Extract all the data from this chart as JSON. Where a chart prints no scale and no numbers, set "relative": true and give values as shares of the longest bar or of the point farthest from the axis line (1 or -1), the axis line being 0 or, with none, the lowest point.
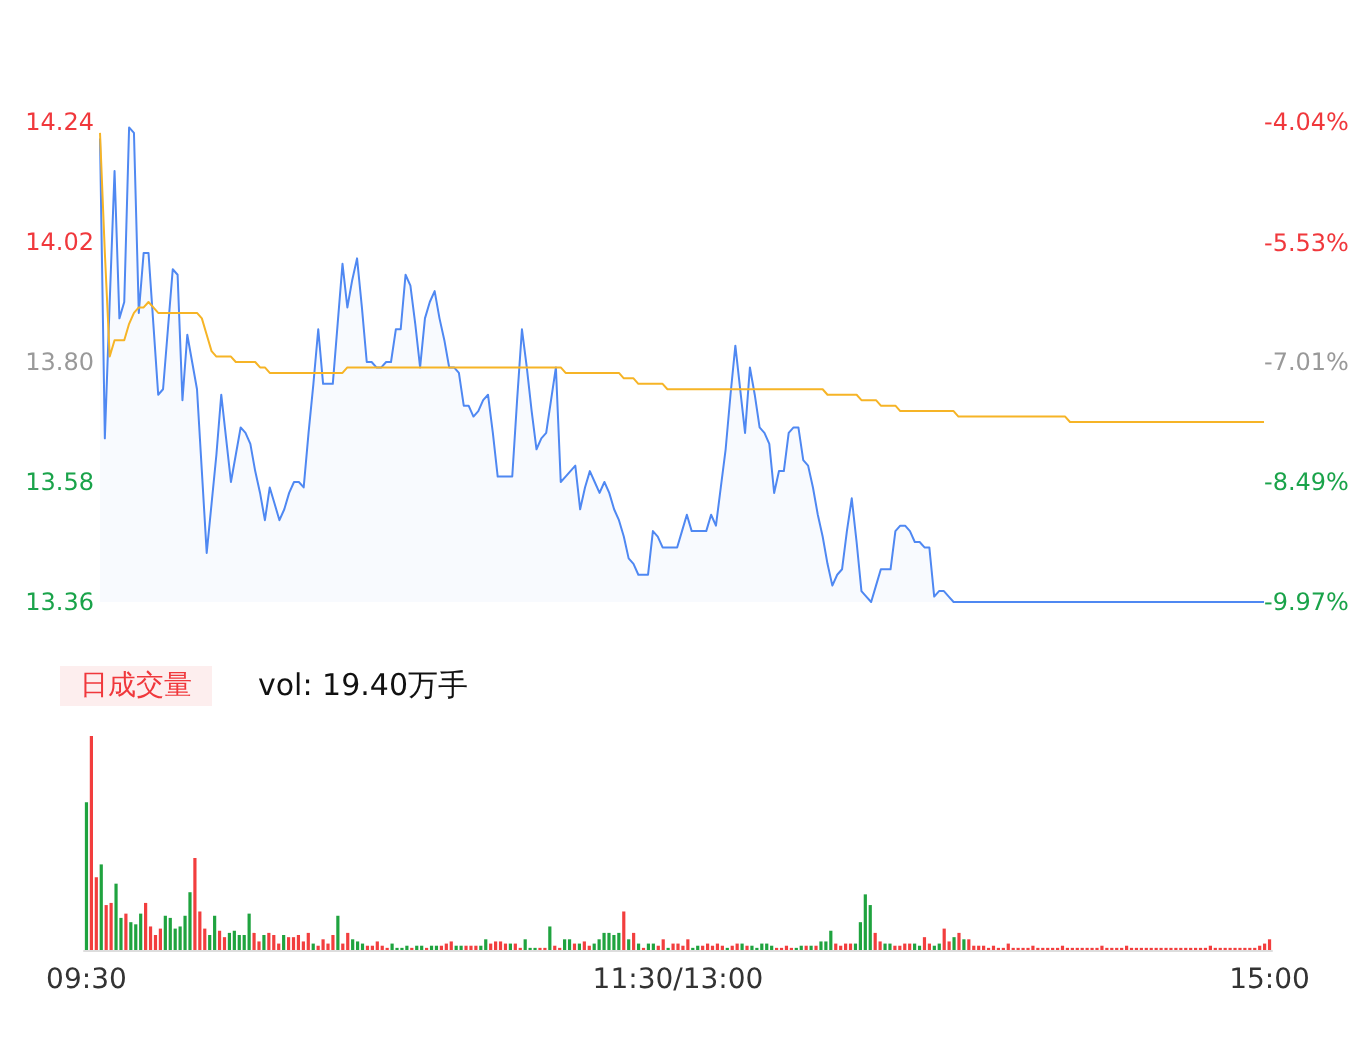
{
  "chart_data": [
    {
      "type": "line",
      "ylim": [
        13.36,
        14.24
      ],
      "yticks": [
        13.36,
        13.58,
        {
          "value": 13.8,
          "label": "13.80"
        },
        14.02,
        14.24
      ],
      "y2lim": [
        -9.97,
        -4.04
      ],
      "y2ticks": [
        {
          "value": -9.97,
          "label": "-9.97%"
        },
        {
          "value": -8.49,
          "label": "-8.49%"
        },
        {
          "value": -7.01,
          "label": "-7.01%"
        },
        {
          "value": -5.53,
          "label": "-5.53%"
        },
        {
          "value": -4.04,
          "label": "-4.04%"
        }
      ],
      "tick_labels": "y",
      "categories": [
        null,
        null,
        null,
        null,
        null,
        null,
        null,
        null,
        null,
        null,
        null,
        null,
        null,
        null,
        null,
        null,
        null,
        null,
        null,
        null,
        null,
        null,
        null,
        null,
        null,
        null,
        null,
        null,
        null,
        null,
        null,
        null,
        null,
        null,
        null,
        null,
        null,
        null,
        null,
        null,
        null,
        null,
        null,
        null,
        null,
        null,
        null,
        null,
        null,
        null,
        null,
        null,
        null,
        null,
        null,
        null,
        null,
        null,
        null,
        null,
        null,
        null,
        null,
        null,
        null,
        null,
        null,
        null,
        null,
        null,
        null,
        null,
        null,
        null,
        null,
        null,
        null,
        null,
        null,
        null,
        null,
        null,
        null,
        null,
        null,
        null,
        null,
        null,
        null,
        null,
        null,
        null,
        null,
        null,
        null,
        null,
        null,
        null,
        null,
        null,
        null,
        null,
        null,
        null,
        null,
        null,
        null,
        null,
        null,
        null,
        null,
        null,
        null,
        null,
        null,
        null,
        null,
        null,
        null,
        null,
        null,
        null,
        null,
        null,
        null,
        null,
        null,
        null,
        null,
        null,
        null,
        null,
        null,
        null,
        null,
        null,
        null,
        null,
        null,
        null,
        null,
        null,
        null,
        null,
        null,
        null,
        null,
        null,
        null,
        null,
        null,
        null,
        null,
        null,
        null,
        null,
        null,
        null,
        null,
        null,
        null,
        null,
        null,
        null,
        null,
        null,
        null,
        null,
        null,
        null,
        null,
        null,
        null,
        null,
        null,
        null,
        null,
        null,
        null,
        null,
        null,
        null,
        null,
        null,
        null,
        null,
        null,
        null,
        null,
        null,
        null,
        null,
        null,
        null,
        null,
        null,
        null,
        null,
        null,
        null,
        null,
        null,
        null,
        null,
        null,
        null,
        null,
        null,
        null,
        null,
        null,
        null,
        null,
        null,
        null,
        null,
        null,
        null,
        null,
        null,
        null,
        null,
        null,
        null,
        null,
        null,
        null,
        null,
        null,
        null,
        null,
        null,
        null,
        null,
        null,
        null,
        null,
        null,
        null,
        null,
        null
      ],
      "series": [
        {
          "type": "area",
          "color": "#4f88f2",
          "values": [
            14.21,
            13.66,
            13.91,
            14.15,
            13.88,
            13.91,
            14.23,
            14.22,
            13.89,
            14.0,
            14.0,
            13.87,
            13.74,
            13.75,
            13.86,
            13.97,
            13.96,
            13.73,
            13.85,
            13.8,
            13.75,
            13.6,
            13.45,
            13.54,
            13.63,
            13.74,
            13.66,
            13.58,
            13.63,
            13.68,
            13.67,
            13.65,
            13.6,
            13.56,
            13.51,
            13.57,
            13.54,
            13.51,
            13.53,
            13.56,
            13.58,
            13.58,
            13.57,
            13.67,
            13.76,
            13.86,
            13.76,
            13.76,
            13.76,
            13.87,
            13.98,
            13.9,
            13.95,
            13.99,
            13.9,
            13.8,
            13.8,
            13.79,
            13.79,
            13.8,
            13.8,
            13.86,
            13.86,
            13.96,
            13.94,
            13.87,
            13.79,
            13.88,
            13.91,
            13.93,
            13.88,
            13.84,
            13.79,
            13.79,
            13.78,
            13.72,
            13.72,
            13.7,
            13.71,
            13.73,
            13.74,
            13.67,
            13.59,
            13.59,
            13.59,
            13.59,
            13.73,
            13.86,
            13.79,
            13.71,
            13.64,
            13.66,
            13.67,
            13.73,
            13.79,
            13.58,
            13.59,
            13.6,
            13.61,
            13.53,
            13.57,
            13.6,
            13.58,
            13.56,
            13.58,
            13.56,
            13.53,
            13.51,
            13.48,
            13.44,
            13.43,
            13.41,
            13.41,
            13.41,
            13.49,
            13.48,
            13.46,
            13.46,
            13.46,
            13.46,
            13.49,
            13.52,
            13.49,
            13.49,
            13.49,
            13.49,
            13.52,
            13.5,
            13.57,
            13.64,
            13.74,
            13.83,
            13.75,
            13.67,
            13.79,
            13.74,
            13.68,
            13.67,
            13.65,
            13.56,
            13.6,
            13.6,
            13.67,
            13.68,
            13.68,
            13.62,
            13.61,
            13.57,
            13.52,
            13.48,
            13.43,
            13.39,
            13.41,
            13.42,
            13.49,
            13.55,
            13.47,
            13.38,
            13.37,
            13.36,
            13.39,
            13.42,
            13.42,
            13.42,
            13.49,
            13.5,
            13.5,
            13.49,
            13.47,
            13.47,
            13.46,
            13.46,
            13.37,
            13.38,
            13.38,
            13.37,
            13.36,
            13.36,
            13.36,
            13.36,
            13.36,
            13.36,
            13.36,
            13.36,
            13.36,
            13.36,
            13.36,
            13.36,
            13.36,
            13.36,
            13.36,
            13.36,
            13.36,
            13.36,
            13.36,
            13.36,
            13.36,
            13.36,
            13.36,
            13.36,
            13.36,
            13.36,
            13.36,
            13.36,
            13.36,
            13.36,
            13.36,
            13.36,
            13.36,
            13.36,
            13.36,
            13.36,
            13.36,
            13.36,
            13.36,
            13.36,
            13.36,
            13.36,
            13.36,
            13.36,
            13.36,
            13.36,
            13.36,
            13.36,
            13.36,
            13.36,
            13.36,
            13.36,
            13.36,
            13.36,
            13.36,
            13.36,
            13.36,
            13.36,
            13.36,
            13.36,
            13.36,
            13.36,
            13.36,
            13.36,
            13.36
          ]
        },
        {
          "type": "line",
          "color": "#f6b426",
          "values": [
            14.22,
            14.0,
            13.81,
            13.84,
            13.84,
            13.84,
            13.87,
            13.89,
            13.9,
            13.9,
            13.91,
            13.9,
            13.89,
            13.89,
            13.89,
            13.89,
            13.89,
            13.89,
            13.89,
            13.89,
            13.89,
            13.88,
            13.85,
            13.82,
            13.81,
            13.81,
            13.81,
            13.81,
            13.8,
            13.8,
            13.8,
            13.8,
            13.8,
            13.79,
            13.79,
            13.78,
            13.78,
            13.78,
            13.78,
            13.78,
            13.78,
            13.78,
            13.78,
            13.78,
            13.78,
            13.78,
            13.78,
            13.78,
            13.78,
            13.78,
            13.78,
            13.79,
            13.79,
            13.79,
            13.79,
            13.79,
            13.79,
            13.79,
            13.79,
            13.79,
            13.79,
            13.79,
            13.79,
            13.79,
            13.79,
            13.79,
            13.79,
            13.79,
            13.79,
            13.79,
            13.79,
            13.79,
            13.79,
            13.79,
            13.79,
            13.79,
            13.79,
            13.79,
            13.79,
            13.79,
            13.79,
            13.79,
            13.79,
            13.79,
            13.79,
            13.79,
            13.79,
            13.79,
            13.79,
            13.79,
            13.79,
            13.79,
            13.79,
            13.79,
            13.79,
            13.79,
            13.78,
            13.78,
            13.78,
            13.78,
            13.78,
            13.78,
            13.78,
            13.78,
            13.78,
            13.78,
            13.78,
            13.78,
            13.77,
            13.77,
            13.77,
            13.76,
            13.76,
            13.76,
            13.76,
            13.76,
            13.76,
            13.75,
            13.75,
            13.75,
            13.75,
            13.75,
            13.75,
            13.75,
            13.75,
            13.75,
            13.75,
            13.75,
            13.75,
            13.75,
            13.75,
            13.75,
            13.75,
            13.75,
            13.75,
            13.75,
            13.75,
            13.75,
            13.75,
            13.75,
            13.75,
            13.75,
            13.75,
            13.75,
            13.75,
            13.75,
            13.75,
            13.75,
            13.75,
            13.75,
            13.74,
            13.74,
            13.74,
            13.74,
            13.74,
            13.74,
            13.74,
            13.73,
            13.73,
            13.73,
            13.73,
            13.72,
            13.72,
            13.72,
            13.72,
            13.71,
            13.71,
            13.71,
            13.71,
            13.71,
            13.71,
            13.71,
            13.71,
            13.71,
            13.71,
            13.71,
            13.71,
            13.7,
            13.7,
            13.7,
            13.7,
            13.7,
            13.7,
            13.7,
            13.7,
            13.7,
            13.7,
            13.7,
            13.7,
            13.7,
            13.7,
            13.7,
            13.7,
            13.7,
            13.7,
            13.7,
            13.7,
            13.7,
            13.7,
            13.7,
            13.69,
            13.69,
            13.69,
            13.69,
            13.69,
            13.69,
            13.69,
            13.69,
            13.69,
            13.69,
            13.69,
            13.69,
            13.69,
            13.69,
            13.69,
            13.69,
            13.69,
            13.69,
            13.69,
            13.69,
            13.69,
            13.69,
            13.69,
            13.69,
            13.69,
            13.69,
            13.69,
            13.69,
            13.69,
            13.69,
            13.69,
            13.69,
            13.69,
            13.69,
            13.69,
            13.69,
            13.69,
            13.69,
            13.69,
            13.69,
            13.69
          ]
        }
      ]
    },
    {
      "type": "bar",
      "relative": true,
      "title": "日成交量",
      "subtitle": "vol: 19.40万手",
      "tick_labels": "x",
      "categories": [
        "09:30",
        null,
        null,
        null,
        null,
        null,
        null,
        null,
        null,
        null,
        null,
        null,
        null,
        null,
        null,
        null,
        null,
        null,
        null,
        null,
        null,
        null,
        null,
        null,
        null,
        null,
        null,
        null,
        null,
        null,
        null,
        null,
        null,
        null,
        null,
        null,
        null,
        null,
        null,
        null,
        null,
        null,
        null,
        null,
        null,
        null,
        null,
        null,
        null,
        null,
        null,
        null,
        null,
        null,
        null,
        null,
        null,
        null,
        null,
        null,
        null,
        null,
        null,
        null,
        null,
        null,
        null,
        null,
        null,
        null,
        null,
        null,
        null,
        null,
        null,
        null,
        null,
        null,
        null,
        null,
        null,
        null,
        null,
        null,
        null,
        null,
        null,
        null,
        null,
        null,
        null,
        null,
        null,
        null,
        null,
        null,
        null,
        null,
        null,
        null,
        null,
        null,
        null,
        null,
        null,
        null,
        null,
        null,
        null,
        null,
        null,
        null,
        null,
        null,
        null,
        null,
        null,
        null,
        null,
        null,
        "11:30/13:00",
        null,
        null,
        null,
        null,
        null,
        null,
        null,
        null,
        null,
        null,
        null,
        null,
        null,
        null,
        null,
        null,
        null,
        null,
        null,
        null,
        null,
        null,
        null,
        null,
        null,
        null,
        null,
        null,
        null,
        null,
        null,
        null,
        null,
        null,
        null,
        null,
        null,
        null,
        null,
        null,
        null,
        null,
        null,
        null,
        null,
        null,
        null,
        null,
        null,
        null,
        null,
        null,
        null,
        null,
        null,
        null,
        null,
        null,
        null,
        null,
        null,
        null,
        null,
        null,
        null,
        null,
        null,
        null,
        null,
        null,
        null,
        null,
        null,
        null,
        null,
        null,
        null,
        null,
        null,
        null,
        null,
        null,
        null,
        null,
        null,
        null,
        null,
        null,
        null,
        null,
        null,
        null,
        null,
        null,
        null,
        null,
        null,
        null,
        null,
        null,
        null,
        null,
        null,
        null,
        null,
        null,
        null,
        null,
        null,
        null,
        null,
        null,
        null,
        null,
        null,
        null,
        null,
        null,
        null,
        "15:00"
      ],
      "values": [
        0.69,
        1,
        0.34,
        0.4,
        0.21,
        0.22,
        0.31,
        0.15,
        0.17,
        0.13,
        0.12,
        0.17,
        0.22,
        0.11,
        0.07,
        0.1,
        0.16,
        0.15,
        0.1,
        0.11,
        0.16,
        0.27,
        0.43,
        0.18,
        0.1,
        0.07,
        0.16,
        0.09,
        0.06,
        0.08,
        0.09,
        0.07,
        0.07,
        0.17,
        0.08,
        0.04,
        0.07,
        0.08,
        0.07,
        0.03,
        0.07,
        0.06,
        0.06,
        0.07,
        0.04,
        0.08,
        0.03,
        0.02,
        0.05,
        0.03,
        0.07,
        0.16,
        0.03,
        0.08,
        0.05,
        0.04,
        0.03,
        0.02,
        0.02,
        0.04,
        0.02,
        0.01,
        0.03,
        0.01,
        0.01,
        0.02,
        0.01,
        0.02,
        0.02,
        0.01,
        0.02,
        0.02,
        0.02,
        0.03,
        0.04,
        0.02,
        0.02,
        0.02,
        0.02,
        0.02,
        0.02,
        0.05,
        0.03,
        0.04,
        0.04,
        0.03,
        0.03,
        0.03,
        0.01,
        0.05,
        0.01,
        0.01,
        0.01,
        0.01,
        0.11,
        0.02,
        0.01,
        0.05,
        0.05,
        0.03,
        0.03,
        0.04,
        0.02,
        0.03,
        0.05,
        0.08,
        0.08,
        0.07,
        0.08,
        0.18,
        0.05,
        0.08,
        0.03,
        0.01,
        0.03,
        0.03,
        0.02,
        0.05,
        0.01,
        0.03,
        0.03,
        0.02,
        0.05,
        0.01,
        0.02,
        0.02,
        0.03,
        0.02,
        0.03,
        0.02,
        0.01,
        0.02,
        0.03,
        0.03,
        0.02,
        0.02,
        0.01,
        0.03,
        0.03,
        0.02,
        0.01,
        0.01,
        0.02,
        0.01,
        0.01,
        0.02,
        0.02,
        0.02,
        0.02,
        0.04,
        0.04,
        0.09,
        0.03,
        0.02,
        0.03,
        0.03,
        0.03,
        0.13,
        0.26,
        0.21,
        0.08,
        0.04,
        0.03,
        0.03,
        0.02,
        0.02,
        0.03,
        0.03,
        0.03,
        0.02,
        0.06,
        0.03,
        0.02,
        0.03,
        0.1,
        0.04,
        0.06,
        0.08,
        0.05,
        0.05,
        0.02,
        0.02,
        0.02,
        0.01,
        0.02,
        0.01,
        0.01,
        0.03,
        0.01,
        0.01,
        0.01,
        0.01,
        0.02,
        0.01,
        0.01,
        0.01,
        0.01,
        0.01,
        0.02,
        0.01,
        0.01,
        0.01,
        0.01,
        0.01,
        0.01,
        0.01,
        0.02,
        0.01,
        0.01,
        0.01,
        0.01,
        0.02,
        0.01,
        0.01,
        0.01,
        0.01,
        0.01,
        0.01,
        0.01,
        0.01,
        0.01,
        0.01,
        0.01,
        0.01,
        0.01,
        0.01,
        0.01,
        0.01,
        0.02,
        0.01,
        0.01,
        0.01,
        0.01,
        0.01,
        0.01,
        0.01,
        0.01,
        0.01,
        0.02,
        0.03,
        0.05
      ],
      "colors": [
        "#1fa33f",
        "#f23e3e",
        "#f23e3e",
        "#1fa33f",
        "#f23e3e",
        "#f23e3e",
        "#1fa33f",
        "#1fa33f",
        "#f23e3e",
        "#1fa33f",
        "#1fa33f",
        "#1fa33f",
        "#f23e3e",
        "#f23e3e",
        "#f23e3e",
        "#f23e3e",
        "#1fa33f",
        "#1fa33f",
        "#1fa33f",
        "#1fa33f",
        "#1fa33f",
        "#1fa33f",
        "#f23e3e",
        "#f23e3e",
        "#f23e3e",
        "#1fa33f",
        "#1fa33f",
        "#f23e3e",
        "#f23e3e",
        "#1fa33f",
        "#1fa33f",
        "#1fa33f",
        "#1fa33f",
        "#1fa33f",
        "#f23e3e",
        "#f23e3e",
        "#1fa33f",
        "#f23e3e",
        "#f23e3e",
        "#f23e3e",
        "#1fa33f",
        "#f23e3e",
        "#f23e3e",
        "#f23e3e",
        "#f23e3e",
        "#f23e3e",
        "#1fa33f",
        "#f23e3e",
        "#f23e3e",
        "#f23e3e",
        "#f23e3e",
        "#1fa33f",
        "#f23e3e",
        "#f23e3e",
        "#1fa33f",
        "#1fa33f",
        "#1fa33f",
        "#f23e3e",
        "#f23e3e",
        "#f23e3e",
        "#f23e3e",
        "#f23e3e",
        "#1fa33f",
        "#1fa33f",
        "#1fa33f",
        "#1fa33f",
        "#f23e3e",
        "#1fa33f",
        "#1fa33f",
        "#f23e3e",
        "#1fa33f",
        "#1fa33f",
        "#f23e3e",
        "#f23e3e",
        "#f23e3e",
        "#1fa33f",
        "#1fa33f",
        "#f23e3e",
        "#f23e3e",
        "#f23e3e",
        "#1fa33f",
        "#1fa33f",
        "#f23e3e",
        "#f23e3e",
        "#f23e3e",
        "#f23e3e",
        "#1fa33f",
        "#f23e3e",
        "#f23e3e",
        "#1fa33f",
        "#1fa33f",
        "#1fa33f",
        "#f23e3e",
        "#f23e3e",
        "#1fa33f",
        "#f23e3e",
        "#f23e3e",
        "#1fa33f",
        "#1fa33f",
        "#f23e3e",
        "#1fa33f",
        "#f23e3e",
        "#f23e3e",
        "#1fa33f",
        "#1fa33f",
        "#1fa33f",
        "#1fa33f",
        "#1fa33f",
        "#1fa33f",
        "#f23e3e",
        "#1fa33f",
        "#f23e3e",
        "#1fa33f",
        "#f23e3e",
        "#1fa33f",
        "#1fa33f",
        "#f23e3e",
        "#f23e3e",
        "#1fa33f",
        "#f23e3e",
        "#f23e3e",
        "#f23e3e",
        "#f23e3e",
        "#1fa33f",
        "#1fa33f",
        "#f23e3e",
        "#f23e3e",
        "#f23e3e",
        "#f23e3e",
        "#f23e3e",
        "#1fa33f",
        "#f23e3e",
        "#f23e3e",
        "#1fa33f",
        "#f23e3e",
        "#1fa33f",
        "#1fa33f",
        "#1fa33f",
        "#1fa33f",
        "#1fa33f",
        "#f23e3e",
        "#f23e3e",
        "#f23e3e",
        "#f23e3e",
        "#1fa33f",
        "#1fa33f",
        "#f23e3e",
        "#1fa33f",
        "#f23e3e",
        "#1fa33f",
        "#1fa33f",
        "#1fa33f",
        "#f23e3e",
        "#f23e3e",
        "#f23e3e",
        "#f23e3e",
        "#1fa33f",
        "#1fa33f",
        "#1fa33f",
        "#1fa33f",
        "#f23e3e",
        "#f23e3e",
        "#1fa33f",
        "#1fa33f",
        "#f23e3e",
        "#f23e3e",
        "#f23e3e",
        "#f23e3e",
        "#1fa33f",
        "#1fa33f",
        "#f23e3e",
        "#f23e3e",
        "#1fa33f",
        "#1fa33f",
        "#f23e3e",
        "#f23e3e",
        "#1fa33f",
        "#f23e3e",
        "#1fa33f",
        "#f23e3e",
        "#f23e3e",
        "#f23e3e",
        "#f23e3e",
        "#f23e3e",
        "#f23e3e",
        "#f23e3e",
        "#f23e3e",
        "#f23e3e",
        "#f23e3e",
        "#f23e3e",
        "#f23e3e",
        "#f23e3e",
        "#f23e3e",
        "#f23e3e",
        "#f23e3e",
        "#f23e3e",
        "#f23e3e",
        "#f23e3e",
        "#f23e3e",
        "#f23e3e",
        "#f23e3e",
        "#f23e3e",
        "#f23e3e",
        "#f23e3e",
        "#f23e3e",
        "#f23e3e",
        "#f23e3e",
        "#f23e3e",
        "#f23e3e",
        "#f23e3e",
        "#f23e3e",
        "#f23e3e",
        "#f23e3e",
        "#f23e3e",
        "#f23e3e",
        "#f23e3e",
        "#f23e3e",
        "#f23e3e",
        "#f23e3e",
        "#f23e3e",
        "#f23e3e",
        "#f23e3e",
        "#f23e3e",
        "#f23e3e",
        "#f23e3e",
        "#f23e3e",
        "#f23e3e",
        "#f23e3e",
        "#f23e3e",
        "#f23e3e",
        "#f23e3e",
        "#f23e3e",
        "#f23e3e",
        "#f23e3e",
        "#f23e3e",
        "#f23e3e",
        "#f23e3e",
        "#f23e3e",
        "#f23e3e",
        "#f23e3e",
        "#f23e3e"
      ]
    }
  ]
}
